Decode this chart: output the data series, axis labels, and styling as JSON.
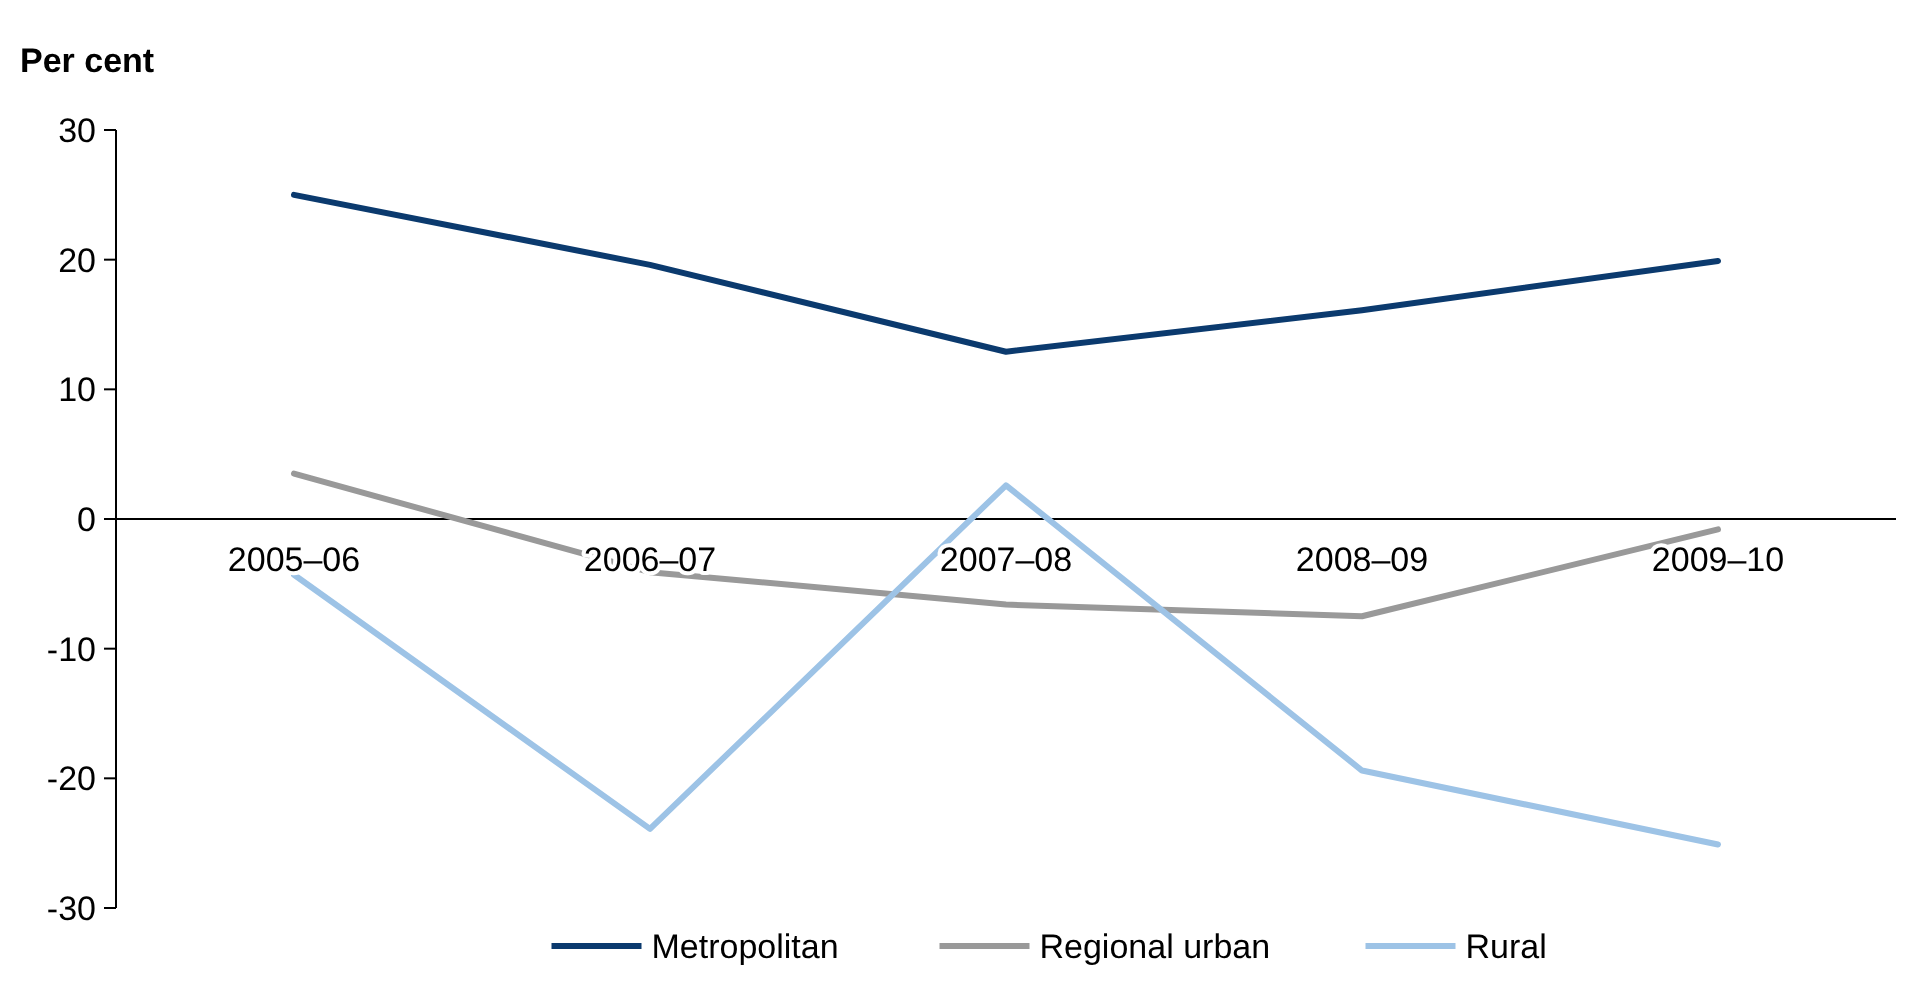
{
  "chart_data": {
    "type": "line",
    "ylabel": "Per cent",
    "categories": [
      "2005–06",
      "2006–07",
      "2007–08",
      "2008–09",
      "2009–10"
    ],
    "series": [
      {
        "name": "Metropolitan",
        "color": "#0b3a6e",
        "values": [
          25,
          19.6,
          12.9,
          16.1,
          19.9
        ]
      },
      {
        "name": "Regional urban",
        "color": "#999999",
        "values": [
          3.5,
          -4.1,
          -6.6,
          -7.5,
          -0.8
        ]
      },
      {
        "name": "Rural",
        "color": "#9dc3e6",
        "values": [
          -4.3,
          -23.9,
          2.6,
          -19.4,
          -25.1
        ]
      }
    ],
    "ylim": [
      -30,
      30
    ],
    "yticks": [
      -30,
      -20,
      -10,
      0,
      10,
      20,
      30
    ],
    "grid": false,
    "legend": "bottom",
    "marker": "none",
    "line_style": "solid"
  }
}
